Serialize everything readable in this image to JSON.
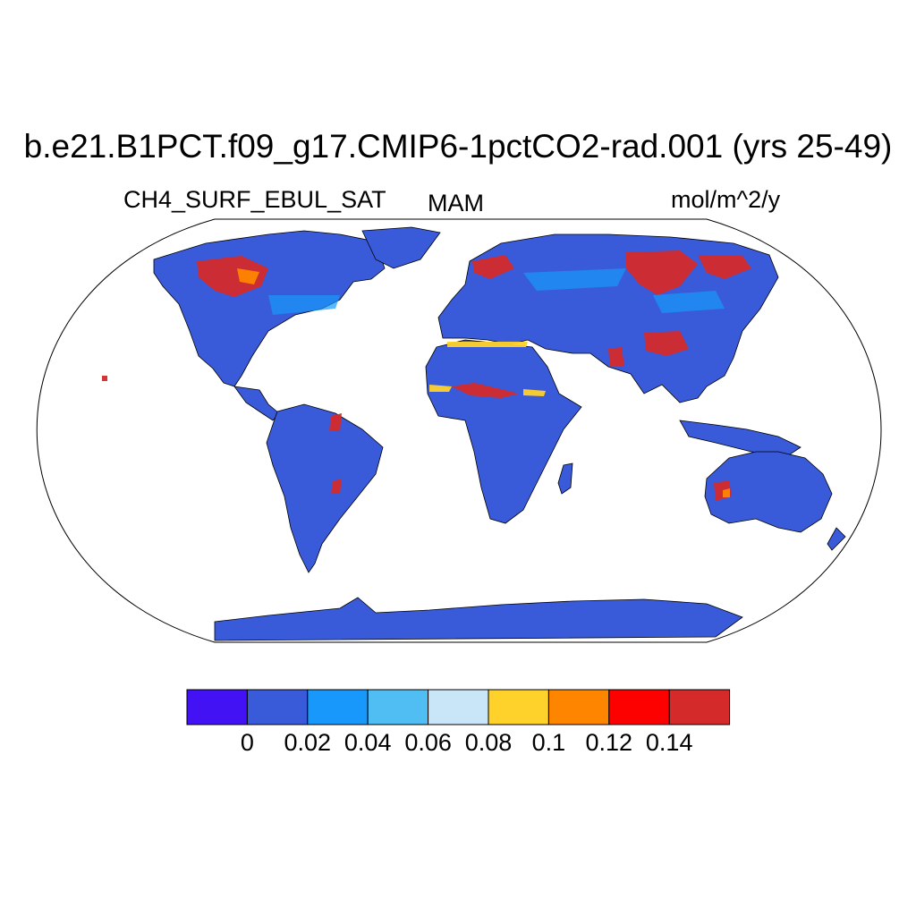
{
  "title": "b.e21.B1PCT.f09_g17.CMIP6-1pctCO2-rad.001 (yrs 25-49)",
  "left_subtitle": "CH4_SURF_EBUL_SAT",
  "center_subtitle": "MAM",
  "right_subtitle": "mol/m^2/y",
  "projection": "Robinson",
  "colors": {
    "ocean": "#ffffff",
    "land_base": "#3a5bd9",
    "coastline": "#000000",
    "frame": "#000000"
  },
  "colorbar": {
    "levels": [
      "0",
      "0.02",
      "0.04",
      "0.06",
      "0.08",
      "0.1",
      "0.12",
      "0.14"
    ],
    "colors": [
      "#4212f5",
      "#3a5bd9",
      "#1798fa",
      "#50bef2",
      "#c8e6f8",
      "#fed22a",
      "#fe8500",
      "#fd0000",
      "#d42a2a"
    ]
  }
}
